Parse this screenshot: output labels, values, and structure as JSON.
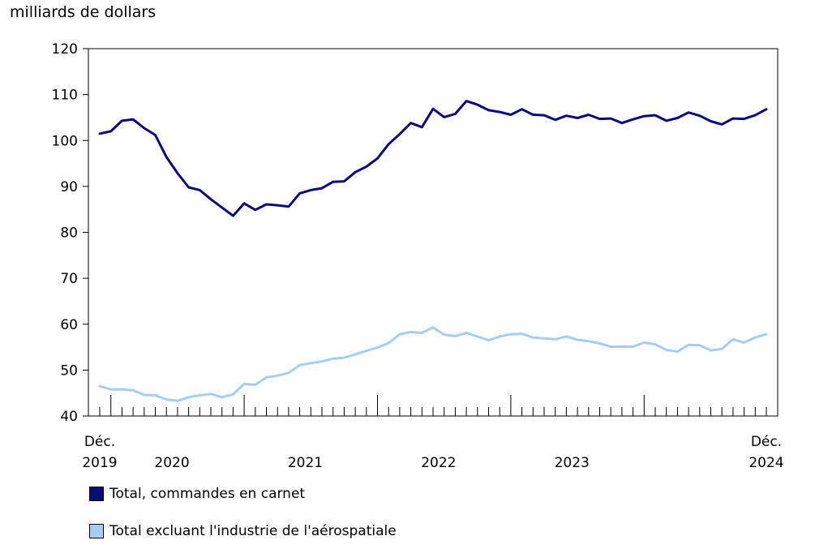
{
  "chart_data": {
    "type": "line",
    "ylabel": "milliards de dollars",
    "ylim": [
      40,
      120
    ],
    "yticks": [
      40,
      50,
      60,
      70,
      80,
      90,
      100,
      110,
      120
    ],
    "x_start_label": [
      "Déc.",
      "2019"
    ],
    "x_end_label": [
      "Déc.",
      "2024"
    ],
    "year_labels": [
      "2020",
      "2021",
      "2022",
      "2023"
    ],
    "x": [
      "2019-12",
      "2020-01",
      "2020-02",
      "2020-03",
      "2020-04",
      "2020-05",
      "2020-06",
      "2020-07",
      "2020-08",
      "2020-09",
      "2020-10",
      "2020-11",
      "2020-12",
      "2021-01",
      "2021-02",
      "2021-03",
      "2021-04",
      "2021-05",
      "2021-06",
      "2021-07",
      "2021-08",
      "2021-09",
      "2021-10",
      "2021-11",
      "2021-12",
      "2022-01",
      "2022-02",
      "2022-03",
      "2022-04",
      "2022-05",
      "2022-06",
      "2022-07",
      "2022-08",
      "2022-09",
      "2022-10",
      "2022-11",
      "2022-12",
      "2023-01",
      "2023-02",
      "2023-03",
      "2023-04",
      "2023-05",
      "2023-06",
      "2023-07",
      "2023-08",
      "2023-09",
      "2023-10",
      "2023-11",
      "2023-12",
      "2024-01",
      "2024-02",
      "2024-03",
      "2024-04",
      "2024-05",
      "2024-06",
      "2024-07",
      "2024-08",
      "2024-09",
      "2024-10",
      "2024-11",
      "2024-12"
    ],
    "series": [
      {
        "name": "Total, commandes en carnet",
        "color": "#0a0a7a",
        "values": [
          101.5,
          102.0,
          104.3,
          104.6,
          102.7,
          101.2,
          96.4,
          92.9,
          89.8,
          89.2,
          87.2,
          85.4,
          83.6,
          86.3,
          84.9,
          86.1,
          85.9,
          85.6,
          88.5,
          89.2,
          89.6,
          91.0,
          91.1,
          93.1,
          94.3,
          96.1,
          99.2,
          101.4,
          103.8,
          102.9,
          106.9,
          105.1,
          105.8,
          108.6,
          107.8,
          106.6,
          106.2,
          105.6,
          106.8,
          105.6,
          105.5,
          104.5,
          105.4,
          104.9,
          105.6,
          104.7,
          104.8,
          103.8,
          104.6,
          105.3,
          105.5,
          104.3,
          104.9,
          106.1,
          105.4,
          104.2,
          103.5,
          104.8,
          104.7,
          105.5,
          106.8
        ]
      },
      {
        "name": "Total excluant l'industrie de l'aérospatiale",
        "color": "#a6cdf7",
        "values": [
          46.5,
          45.8,
          45.8,
          45.6,
          44.6,
          44.5,
          43.6,
          43.3,
          44.1,
          44.5,
          44.8,
          44.1,
          44.7,
          47.0,
          46.8,
          48.4,
          48.8,
          49.4,
          51.1,
          51.5,
          51.9,
          52.5,
          52.7,
          53.4,
          54.2,
          54.9,
          55.9,
          57.8,
          58.3,
          58.1,
          59.3,
          57.7,
          57.4,
          58.1,
          57.3,
          56.5,
          57.3,
          57.8,
          57.9,
          57.1,
          56.9,
          56.7,
          57.3,
          56.6,
          56.3,
          55.8,
          55.1,
          55.1,
          55.1,
          56.0,
          55.6,
          54.4,
          54.0,
          55.5,
          55.4,
          54.3,
          54.6,
          56.7,
          56.0,
          57.1,
          57.8
        ]
      }
    ]
  }
}
